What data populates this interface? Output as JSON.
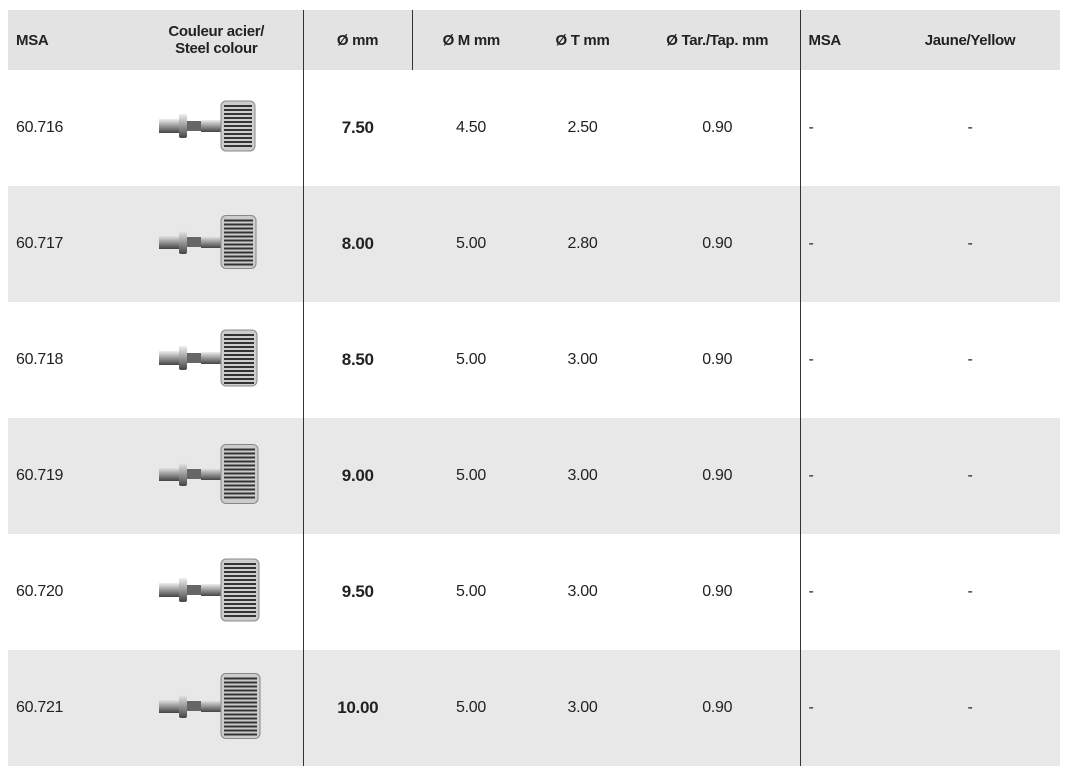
{
  "header": [
    "MSA",
    "Couleur acier/\nSteel colour",
    "Ø mm",
    "Ø M mm",
    "Ø T mm",
    "Ø Tar./Tap. mm",
    "MSA",
    "Jaune/Yellow"
  ],
  "rows": [
    {
      "msa": "60.716",
      "d_mm": "7.50",
      "d_m_mm": "4.50",
      "d_t_mm": "2.50",
      "d_tar_mm": "0.90",
      "msa_yellow": "-",
      "yellow": "-"
    },
    {
      "msa": "60.717",
      "d_mm": "8.00",
      "d_m_mm": "5.00",
      "d_t_mm": "2.80",
      "d_tar_mm": "0.90",
      "msa_yellow": "-",
      "yellow": "-"
    },
    {
      "msa": "60.718",
      "d_mm": "8.50",
      "d_m_mm": "5.00",
      "d_t_mm": "3.00",
      "d_tar_mm": "0.90",
      "msa_yellow": "-",
      "yellow": "-"
    },
    {
      "msa": "60.719",
      "d_mm": "9.00",
      "d_m_mm": "5.00",
      "d_t_mm": "3.00",
      "d_tar_mm": "0.90",
      "msa_yellow": "-",
      "yellow": "-"
    },
    {
      "msa": "60.720",
      "d_mm": "9.50",
      "d_m_mm": "5.00",
      "d_t_mm": "3.00",
      "d_tar_mm": "0.90",
      "msa_yellow": "-",
      "yellow": "-"
    },
    {
      "msa": "60.721",
      "d_mm": "10.00",
      "d_m_mm": "5.00",
      "d_t_mm": "3.00",
      "d_tar_mm": "0.90",
      "msa_yellow": "-",
      "yellow": "-"
    }
  ]
}
